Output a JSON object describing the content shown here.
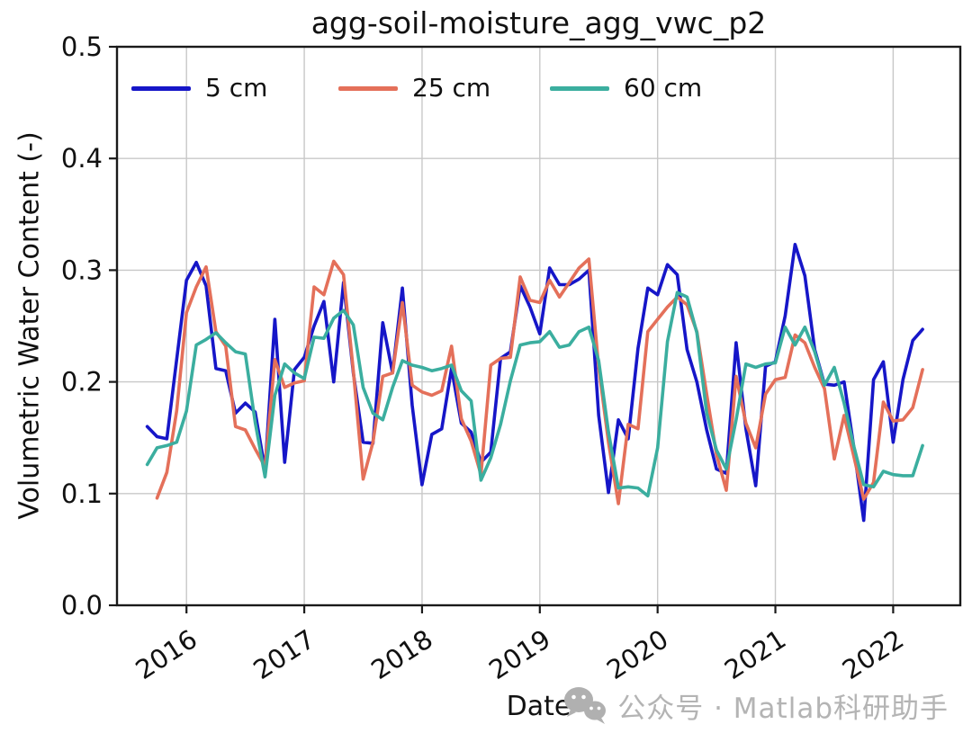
{
  "chart_data": {
    "type": "line",
    "title": "agg-soil-moisture_agg_vwc_p2",
    "xlabel": "Date",
    "ylabel": "Volumetric Water Content (-)",
    "ylim": [
      0.0,
      0.5
    ],
    "yticks": [
      0.0,
      0.1,
      0.2,
      0.3,
      0.4,
      0.5
    ],
    "xticks": [
      2016,
      2017,
      2018,
      2019,
      2020,
      2021,
      2022
    ],
    "xlim": [
      2015.41,
      2022.57
    ],
    "grid": true,
    "x_tick_rotation_deg": -33,
    "legend": {
      "position": "upper left",
      "orientation": "horizontal"
    },
    "x_months": [
      "2015-09",
      "2015-10",
      "2015-11",
      "2015-12",
      "2016-01",
      "2016-02",
      "2016-03",
      "2016-04",
      "2016-05",
      "2016-06",
      "2016-07",
      "2016-08",
      "2016-09",
      "2016-10",
      "2016-11",
      "2016-12",
      "2017-01",
      "2017-02",
      "2017-03",
      "2017-04",
      "2017-05",
      "2017-06",
      "2017-07",
      "2017-08",
      "2017-09",
      "2017-10",
      "2017-11",
      "2017-12",
      "2018-01",
      "2018-02",
      "2018-03",
      "2018-04",
      "2018-05",
      "2018-06",
      "2018-07",
      "2018-08",
      "2018-09",
      "2018-10",
      "2018-11",
      "2018-12",
      "2019-01",
      "2019-02",
      "2019-03",
      "2019-04",
      "2019-05",
      "2019-06",
      "2019-07",
      "2019-08",
      "2019-09",
      "2019-10",
      "2019-11",
      "2019-12",
      "2020-01",
      "2020-02",
      "2020-03",
      "2020-04",
      "2020-05",
      "2020-06",
      "2020-07",
      "2020-08",
      "2020-09",
      "2020-10",
      "2020-11",
      "2020-12",
      "2021-01",
      "2021-02",
      "2021-03",
      "2021-04",
      "2021-05",
      "2021-06",
      "2021-07",
      "2021-08",
      "2021-09",
      "2021-10",
      "2021-11",
      "2021-12",
      "2022-01",
      "2022-02",
      "2022-03",
      "2022-04"
    ],
    "series": [
      {
        "name": "5 cm",
        "color": "#1616C8",
        "values": [
          0.16,
          0.151,
          0.149,
          0.22,
          0.291,
          0.307,
          0.286,
          0.212,
          0.21,
          0.172,
          0.181,
          0.173,
          0.121,
          0.256,
          0.128,
          0.211,
          0.222,
          0.25,
          0.272,
          0.2,
          0.289,
          0.208,
          0.146,
          0.145,
          0.253,
          0.208,
          0.284,
          0.179,
          0.108,
          0.153,
          0.158,
          0.212,
          0.163,
          0.155,
          0.128,
          0.137,
          0.221,
          0.227,
          0.286,
          0.267,
          0.243,
          0.302,
          0.287,
          0.287,
          0.292,
          0.3,
          0.17,
          0.101,
          0.166,
          0.149,
          0.23,
          0.284,
          0.278,
          0.305,
          0.296,
          0.229,
          0.2,
          0.157,
          0.122,
          0.118,
          0.235,
          0.158,
          0.107,
          0.214,
          0.218,
          0.259,
          0.323,
          0.295,
          0.229,
          0.198,
          0.197,
          0.2,
          0.141,
          0.076,
          0.202,
          0.218,
          0.146,
          0.202,
          0.237,
          0.247
        ]
      },
      {
        "name": "25 cm",
        "color": "#E4705A",
        "values": [
          null,
          0.096,
          0.119,
          0.174,
          0.262,
          0.285,
          0.303,
          0.245,
          0.232,
          0.16,
          0.157,
          0.14,
          0.124,
          0.22,
          0.195,
          0.199,
          0.201,
          0.285,
          0.278,
          0.308,
          0.296,
          0.21,
          0.113,
          0.146,
          0.205,
          0.208,
          0.271,
          0.197,
          0.191,
          0.188,
          0.192,
          0.232,
          0.167,
          0.147,
          0.117,
          0.215,
          0.221,
          0.222,
          0.294,
          0.273,
          0.271,
          0.291,
          0.276,
          0.289,
          0.302,
          0.31,
          0.213,
          0.146,
          0.091,
          0.162,
          0.158,
          0.245,
          0.256,
          0.267,
          0.276,
          0.269,
          0.245,
          0.189,
          0.135,
          0.103,
          0.205,
          0.163,
          0.141,
          0.189,
          0.202,
          0.204,
          0.242,
          0.235,
          0.213,
          0.194,
          0.131,
          0.17,
          0.133,
          0.095,
          0.11,
          0.182,
          0.165,
          0.166,
          0.177,
          0.211
        ]
      },
      {
        "name": "60 cm",
        "color": "#3BAE9F",
        "values": [
          0.126,
          0.141,
          0.143,
          0.146,
          0.174,
          0.233,
          0.238,
          0.244,
          0.235,
          0.227,
          0.225,
          0.164,
          0.115,
          0.188,
          0.216,
          0.208,
          0.203,
          0.24,
          0.239,
          0.257,
          0.264,
          0.251,
          0.195,
          0.172,
          0.166,
          0.195,
          0.219,
          0.215,
          0.213,
          0.21,
          0.212,
          0.215,
          0.192,
          0.183,
          0.112,
          0.132,
          0.162,
          0.201,
          0.233,
          0.235,
          0.236,
          0.245,
          0.231,
          0.233,
          0.245,
          0.249,
          0.219,
          0.155,
          0.105,
          0.106,
          0.105,
          0.098,
          0.141,
          0.236,
          0.28,
          0.276,
          0.244,
          0.172,
          0.139,
          0.122,
          0.166,
          0.216,
          0.213,
          0.216,
          0.217,
          0.249,
          0.233,
          0.249,
          0.227,
          0.197,
          0.213,
          0.181,
          0.142,
          0.108,
          0.106,
          0.12,
          0.117,
          0.116,
          0.116,
          0.143
        ]
      }
    ]
  },
  "watermark": {
    "icon": "wechat-icon",
    "text": "公众号 · Matlab科研助手",
    "color": "#b4b4b4"
  },
  "colors": {
    "grid": "#c8c8c8",
    "frame": "#1a1a1a",
    "text": "#111111",
    "background": "#ffffff"
  }
}
